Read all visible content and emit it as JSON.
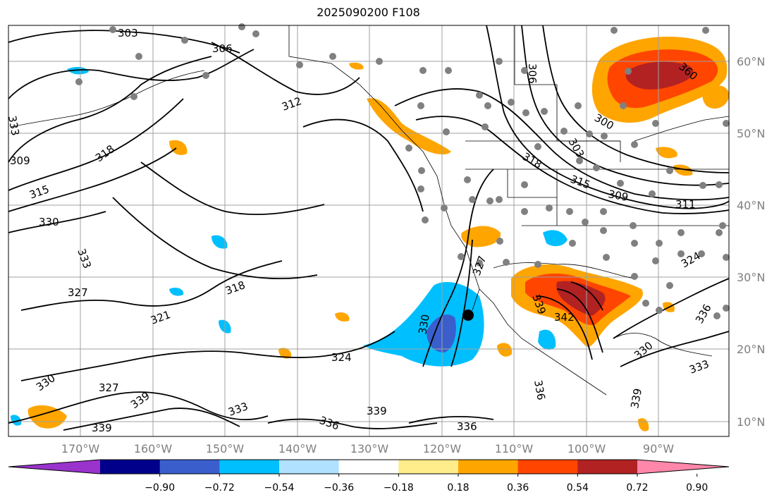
{
  "title": "2025090200 F108",
  "map": {
    "lon_ticks": [
      "170°W",
      "160°W",
      "150°W",
      "140°W",
      "130°W",
      "120°W",
      "110°W",
      "100°W",
      "90°W"
    ],
    "lat_ticks": [
      "60°N",
      "50°N",
      "40°N",
      "30°N",
      "20°N",
      "10°N"
    ],
    "contour_labels": [
      "303",
      "306",
      "312",
      "309",
      "315",
      "318",
      "330",
      "333",
      "327",
      "321",
      "318",
      "324",
      "330",
      "327",
      "339",
      "333",
      "336",
      "339",
      "336",
      "339",
      "330",
      "339",
      "342",
      "336",
      "330",
      "333",
      "339",
      "324",
      "306",
      "303",
      "318",
      "315",
      "309",
      "300",
      "360",
      "311",
      "327",
      "333",
      "336"
    ]
  },
  "colorbar": {
    "ticks": [
      "−0.90",
      "−0.72",
      "−0.54",
      "−0.36",
      "−0.18",
      "0.18",
      "0.36",
      "0.54",
      "0.72",
      "0.90"
    ],
    "colors": [
      "#9933cc",
      "#00008b",
      "#3a5fcd",
      "#00bfff",
      "#b0e2ff",
      "#ffffff",
      "#ffec8b",
      "#ffa500",
      "#ff4500",
      "#b22222",
      "#ff88aa"
    ]
  }
}
